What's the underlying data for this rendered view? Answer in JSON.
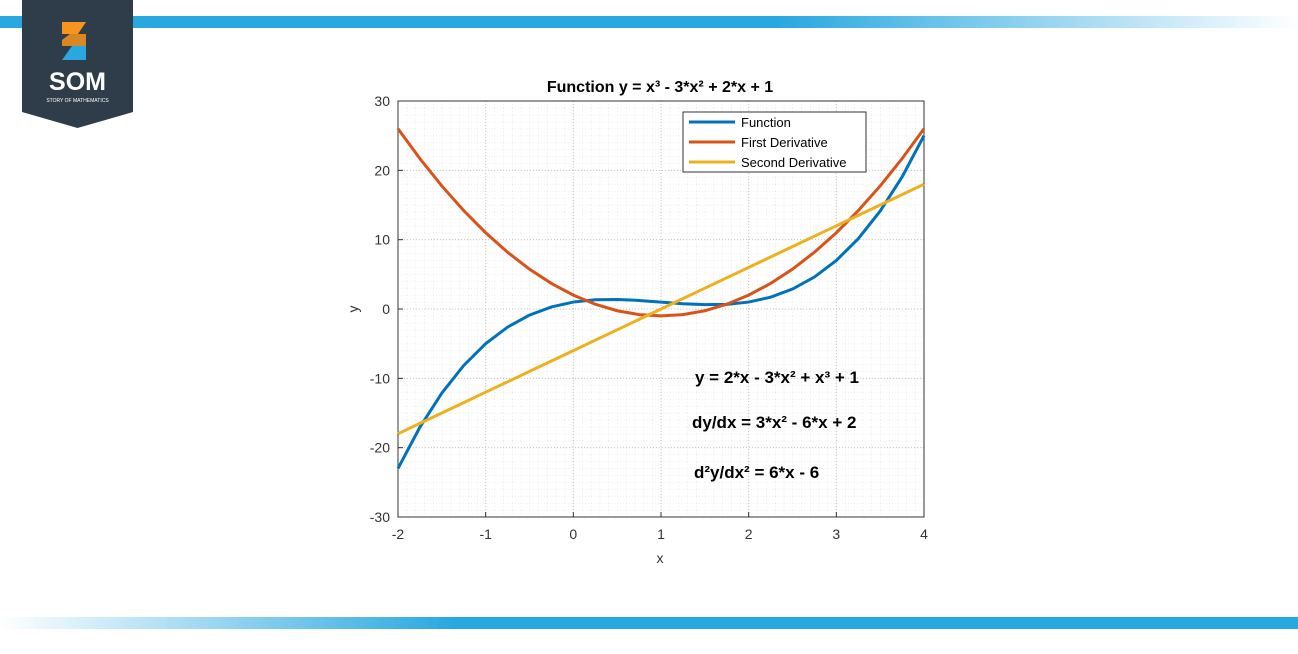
{
  "logo": {
    "title": "SOM",
    "subtitle": "STORY OF MATHEMATICS"
  },
  "chart_data": {
    "type": "line",
    "title": "Function y = x³ - 3*x² + 2*x + 1",
    "x_label": "x",
    "y_label": "y",
    "x": [
      -2,
      -1.75,
      -1.5,
      -1.25,
      -1,
      -0.75,
      -0.5,
      -0.25,
      0,
      0.25,
      0.5,
      0.75,
      1,
      1.25,
      1.5,
      1.75,
      2,
      2.25,
      2.5,
      2.75,
      3,
      3.25,
      3.5,
      3.75,
      4
    ],
    "series": [
      {
        "name": "Function",
        "color": "#0072bd",
        "values": [
          -23,
          -17.046875,
          -12.125,
          -8.140625,
          -5,
          -2.609375,
          -0.875,
          0.296875,
          1,
          1.328125,
          1.375,
          1.234375,
          1,
          0.765625,
          0.625,
          0.671875,
          1,
          1.703125,
          2.875,
          4.609375,
          7,
          10.140625,
          14.125,
          19.046875,
          25
        ]
      },
      {
        "name": "First Derivative",
        "color": "#d95319",
        "values": [
          26,
          21.6875,
          17.75,
          14.1875,
          11,
          8.1875,
          5.75,
          3.6875,
          2,
          0.6875,
          -0.25,
          -0.8125,
          -1,
          -0.8125,
          -0.25,
          0.6875,
          2,
          3.6875,
          5.75,
          8.1875,
          11,
          14.1875,
          17.75,
          21.6875,
          26
        ]
      },
      {
        "name": "Second Derivative",
        "color": "#edb120",
        "values": [
          -18,
          -16.5,
          -15,
          -13.5,
          -12,
          -10.5,
          -9,
          -7.5,
          -6,
          -4.5,
          -3,
          -1.5,
          0,
          1.5,
          3,
          4.5,
          6,
          7.5,
          9,
          10.5,
          12,
          13.5,
          15,
          16.5,
          18
        ]
      }
    ],
    "xlim": [
      -2,
      4
    ],
    "xticks": [
      -2,
      -1,
      0,
      1,
      2,
      3,
      4
    ],
    "ylim": [
      -30,
      30
    ],
    "yticks": [
      -30,
      -20,
      -10,
      0,
      10,
      20,
      30
    ],
    "grid": true,
    "legend": "top-right",
    "annotations": [
      "y = 2*x - 3*x² + x³ + 1",
      "dy/dx = 3*x² - 6*x + 2",
      "d²y/dx² = 6*x - 6"
    ]
  }
}
